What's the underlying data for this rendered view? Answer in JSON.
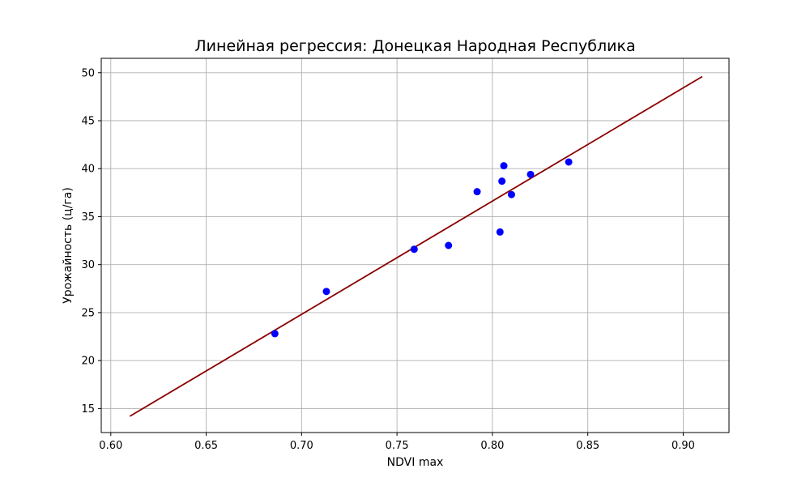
{
  "chart_data": {
    "type": "scatter",
    "title": "Линейная регрессия: Донецкая Народная Республика",
    "xlabel": "NDVI max",
    "ylabel": "Урожайность (ц/га)",
    "xlim": [
      0.595,
      0.924
    ],
    "ylim": [
      12.5,
      51.5
    ],
    "xticks": [
      0.6,
      0.65,
      0.7,
      0.75,
      0.8,
      0.85,
      0.9
    ],
    "xtick_labels": [
      "0.60",
      "0.65",
      "0.70",
      "0.75",
      "0.80",
      "0.85",
      "0.90"
    ],
    "yticks": [
      15,
      20,
      25,
      30,
      35,
      40,
      45,
      50
    ],
    "ytick_labels": [
      "15",
      "20",
      "25",
      "30",
      "35",
      "40",
      "45",
      "50"
    ],
    "grid": true,
    "series": [
      {
        "kind": "scatter",
        "color": "#0000ff",
        "x": [
          0.686,
          0.713,
          0.759,
          0.777,
          0.792,
          0.804,
          0.805,
          0.806,
          0.81,
          0.82,
          0.84
        ],
        "y": [
          22.8,
          27.2,
          31.6,
          32.0,
          37.6,
          33.4,
          38.7,
          40.3,
          37.3,
          39.4,
          40.7
        ]
      },
      {
        "kind": "line",
        "color": "#8b0000",
        "x": [
          0.61,
          0.91
        ],
        "y": [
          14.2,
          49.6
        ]
      }
    ]
  }
}
